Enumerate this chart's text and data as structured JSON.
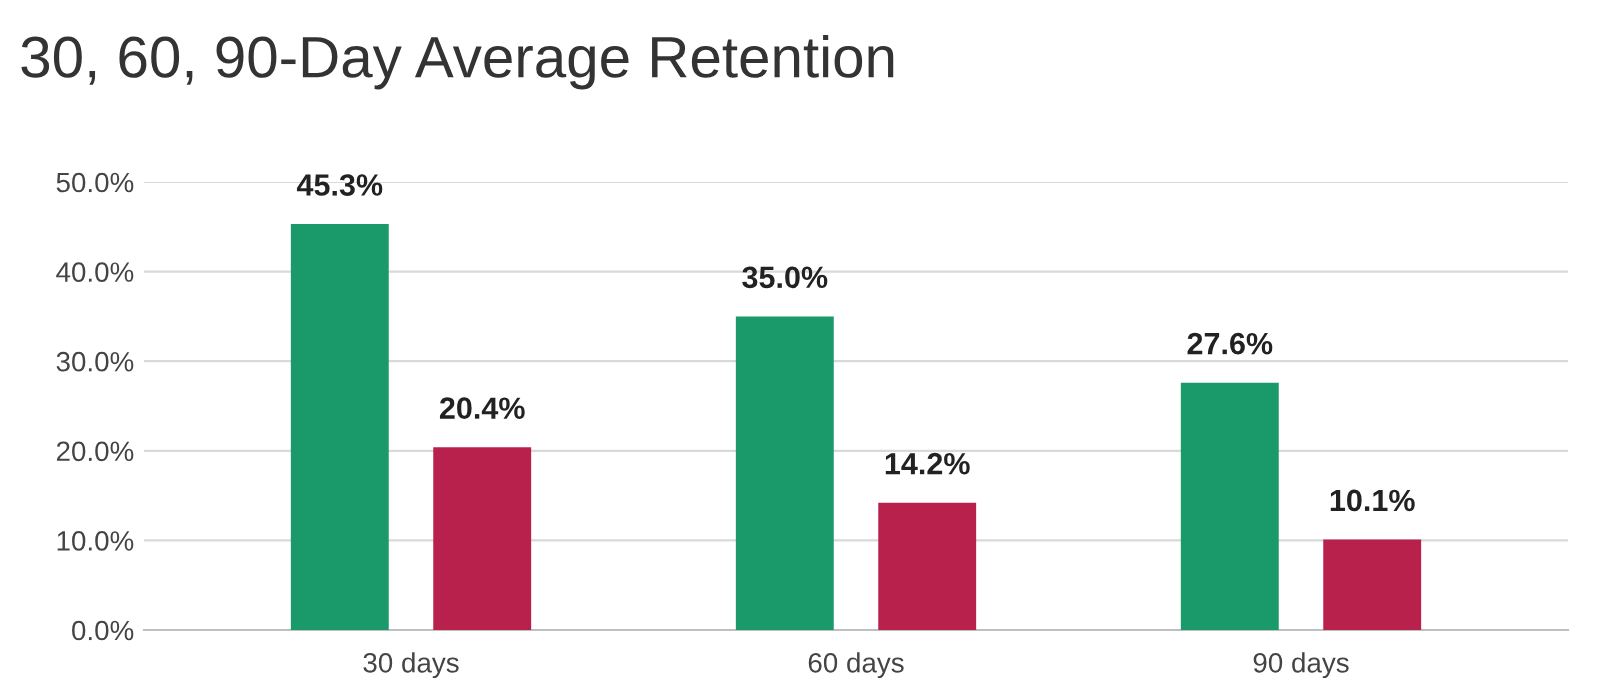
{
  "chart_data": {
    "type": "bar",
    "title": "30, 60, 90-Day Average Retention",
    "categories": [
      "30 days",
      "60 days",
      "90 days"
    ],
    "series": [
      {
        "color": "#1a9a6a",
        "values": [
          45.3,
          35.0,
          27.6
        ],
        "value_labels": [
          "45.3%",
          "35.0%",
          "27.6%"
        ]
      },
      {
        "color": "#b8214b",
        "values": [
          20.4,
          14.2,
          10.1
        ],
        "value_labels": [
          "20.4%",
          "14.2%",
          "10.1%"
        ]
      }
    ],
    "ylim": [
      0,
      50
    ],
    "yticks": [
      {
        "value": 0,
        "label": "0.0%"
      },
      {
        "value": 10,
        "label": "10.0%"
      },
      {
        "value": 20,
        "label": "20.0%"
      },
      {
        "value": 30,
        "label": "30.0%"
      },
      {
        "value": 40,
        "label": "40.0%"
      },
      {
        "value": 50,
        "label": "50.0%"
      }
    ],
    "grid": "y",
    "legend": false
  }
}
